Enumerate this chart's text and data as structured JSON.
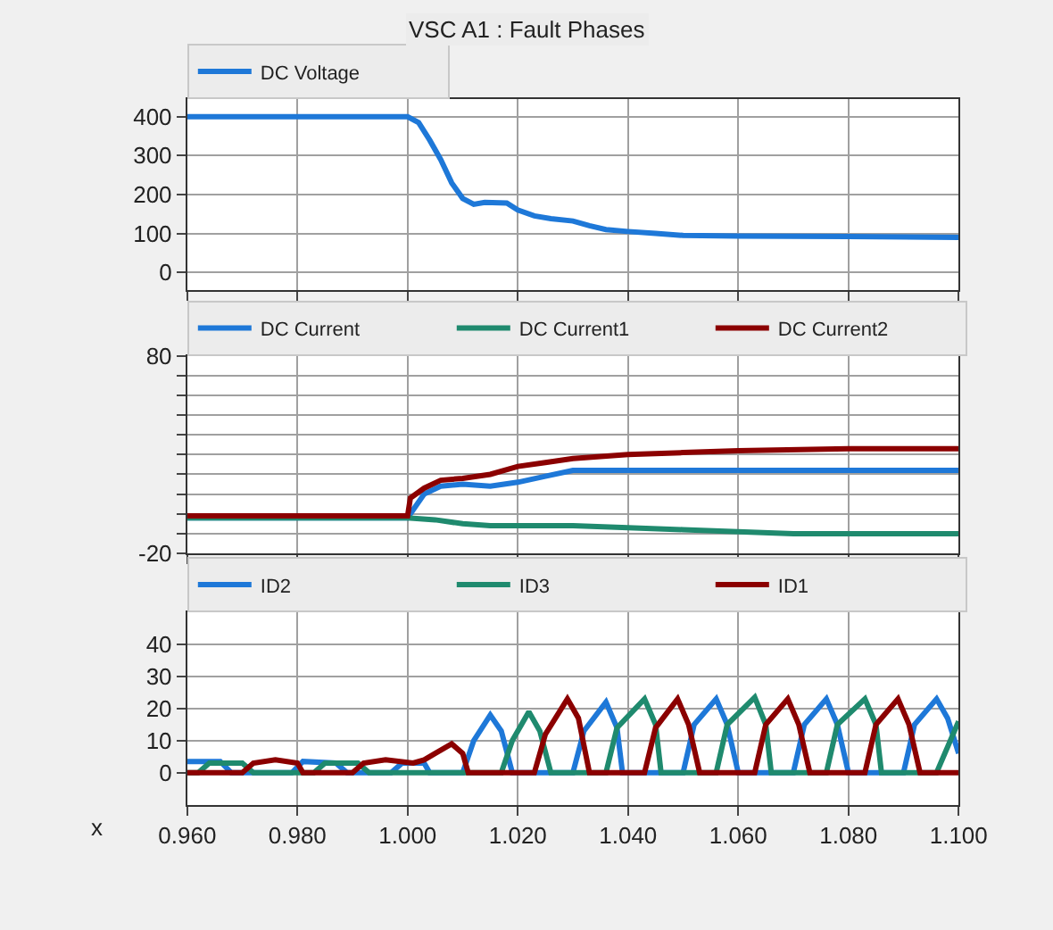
{
  "chart_data": [
    {
      "type": "line",
      "title": "VSC A1 : Fault Phases",
      "xlim": [
        0.96,
        1.1
      ],
      "xticks": [
        {
          "value": 0.96,
          "label": null
        },
        {
          "value": 0.98,
          "label": null
        },
        {
          "value": 1.0,
          "label": null
        },
        {
          "value": 1.02,
          "label": null
        },
        {
          "value": 1.04,
          "label": null
        },
        {
          "value": 1.06,
          "label": null
        },
        {
          "value": 1.08,
          "label": null
        },
        {
          "value": 1.1,
          "label": null
        }
      ],
      "ylim": [
        -45,
        445
      ],
      "yticks": [
        0,
        100,
        200,
        300,
        400
      ],
      "grid": true,
      "legend": "top",
      "tick_labels": "y",
      "series": [
        {
          "name": "DC Voltage",
          "color": "#1e78d8",
          "x": [
            0.96,
            1.0,
            1.002,
            1.004,
            1.006,
            1.008,
            1.01,
            1.012,
            1.014,
            1.018,
            1.02,
            1.023,
            1.026,
            1.03,
            1.033,
            1.036,
            1.04,
            1.045,
            1.05,
            1.06,
            1.08,
            1.1
          ],
          "values": [
            400,
            400,
            385,
            340,
            290,
            230,
            190,
            175,
            180,
            178,
            160,
            145,
            138,
            132,
            120,
            110,
            105,
            100,
            95,
            93,
            92,
            90
          ]
        }
      ]
    },
    {
      "type": "line",
      "xlim": [
        0.96,
        1.1
      ],
      "xticks": [
        {
          "value": 0.96,
          "label": null
        },
        {
          "value": 0.98,
          "label": null
        },
        {
          "value": 1.0,
          "label": null
        },
        {
          "value": 1.02,
          "label": null
        },
        {
          "value": 1.04,
          "label": null
        },
        {
          "value": 1.06,
          "label": null
        },
        {
          "value": 1.08,
          "label": null
        },
        {
          "value": 1.1,
          "label": null
        }
      ],
      "ylim": [
        -20,
        80
      ],
      "yticks": [
        -20,
        {
          "value": -10,
          "label": null
        },
        {
          "value": 0,
          "label": null
        },
        {
          "value": 10,
          "label": null
        },
        {
          "value": 20,
          "label": null
        },
        {
          "value": 30,
          "label": null
        },
        {
          "value": 40,
          "label": null
        },
        {
          "value": 50,
          "label": null
        },
        {
          "value": 60,
          "label": null
        },
        {
          "value": 70,
          "label": null
        },
        80
      ],
      "grid": true,
      "legend": "top",
      "tick_labels": "y",
      "series": [
        {
          "name": "DC Current",
          "color": "#1e78d8",
          "x": [
            0.96,
            1.0,
            1.001,
            1.003,
            1.006,
            1.01,
            1.015,
            1.02,
            1.025,
            1.03,
            1.04,
            1.06,
            1.08,
            1.1
          ],
          "values": [
            -2,
            -2,
            2,
            10,
            14,
            15,
            14,
            16,
            19,
            22,
            22,
            22,
            22,
            22
          ]
        },
        {
          "name": "DC Current1",
          "color": "#1f8a6e",
          "x": [
            0.96,
            1.0,
            1.005,
            1.01,
            1.015,
            1.03,
            1.04,
            1.05,
            1.07,
            1.1
          ],
          "values": [
            -2,
            -2,
            -3,
            -5,
            -6,
            -6,
            -7,
            -8,
            -10,
            -10
          ]
        },
        {
          "name": "DC Current2",
          "color": "#8b0000",
          "x": [
            0.96,
            1.0,
            1.0005,
            1.003,
            1.006,
            1.01,
            1.015,
            1.02,
            1.025,
            1.03,
            1.04,
            1.05,
            1.06,
            1.08,
            1.1
          ],
          "values": [
            -1,
            -1,
            8,
            13,
            17,
            18,
            20,
            24,
            26,
            28,
            30,
            31,
            32,
            33,
            33
          ]
        }
      ]
    },
    {
      "type": "line",
      "xlabel": "x",
      "xlim": [
        0.96,
        1.1
      ],
      "xticks": [
        {
          "value": 0.96,
          "label": "0.960"
        },
        {
          "value": 0.98,
          "label": "0.980"
        },
        {
          "value": 1.0,
          "label": "1.000"
        },
        {
          "value": 1.02,
          "label": "1.020"
        },
        {
          "value": 1.04,
          "label": "1.040"
        },
        {
          "value": 1.06,
          "label": "1.060"
        },
        {
          "value": 1.08,
          "label": "1.080"
        },
        {
          "value": 1.1,
          "label": "1.100"
        }
      ],
      "ylim": [
        -10,
        50
      ],
      "yticks": [
        0,
        10,
        20,
        30,
        40
      ],
      "grid": true,
      "legend": "top",
      "series": [
        {
          "name": "ID2",
          "color": "#1e78d8",
          "x": [
            0.96,
            0.966,
            0.968,
            0.979,
            0.981,
            0.987,
            0.989,
            0.997,
            0.999,
            1.003,
            1.004,
            1.01,
            1.012,
            1.015,
            1.017,
            1.019,
            1.03,
            1.032,
            1.036,
            1.038,
            1.039,
            1.05,
            1.052,
            1.056,
            1.058,
            1.06,
            1.07,
            1.072,
            1.076,
            1.078,
            1.08,
            1.09,
            1.092,
            1.096,
            1.098,
            1.1
          ],
          "values": [
            3.5,
            3.5,
            0,
            0,
            3.5,
            3,
            0,
            0,
            3,
            3,
            0,
            0,
            10,
            18,
            13,
            0,
            0,
            13,
            22,
            14,
            0,
            0,
            15,
            23,
            15,
            0,
            0,
            15,
            23,
            15,
            0,
            0,
            15,
            23,
            17,
            6
          ]
        },
        {
          "name": "ID3",
          "color": "#1f8a6e",
          "x": [
            0.96,
            0.962,
            0.964,
            0.97,
            0.972,
            0.983,
            0.985,
            0.991,
            0.993,
            1.017,
            1.019,
            1.022,
            1.024,
            1.026,
            1.036,
            1.038,
            1.043,
            1.045,
            1.046,
            1.056,
            1.058,
            1.063,
            1.065,
            1.066,
            1.076,
            1.078,
            1.083,
            1.085,
            1.086,
            1.096,
            1.1
          ],
          "values": [
            0,
            0,
            3,
            3,
            0,
            0,
            3,
            3,
            0,
            0,
            10,
            19,
            13,
            0,
            0,
            14,
            23,
            15,
            0,
            0,
            15,
            23.5,
            15,
            0,
            0,
            15,
            23,
            15,
            0,
            0,
            16
          ]
        },
        {
          "name": "ID1",
          "color": "#8b0000",
          "x": [
            0.96,
            0.97,
            0.972,
            0.976,
            0.98,
            0.981,
            0.99,
            0.992,
            0.996,
            1.001,
            1.003,
            1.005,
            1.008,
            1.01,
            1.011,
            1.023,
            1.025,
            1.029,
            1.031,
            1.033,
            1.043,
            1.045,
            1.049,
            1.051,
            1.053,
            1.063,
            1.065,
            1.069,
            1.071,
            1.073,
            1.083,
            1.085,
            1.089,
            1.091,
            1.093,
            1.1
          ],
          "values": [
            0,
            0,
            3,
            4,
            3,
            0,
            0,
            3,
            4,
            3,
            4,
            6,
            9,
            6,
            0,
            0,
            12,
            23,
            17,
            0,
            0,
            14,
            23,
            15,
            0,
            0,
            15,
            23,
            15,
            0,
            0,
            15,
            23,
            15,
            0,
            0
          ]
        }
      ]
    }
  ]
}
